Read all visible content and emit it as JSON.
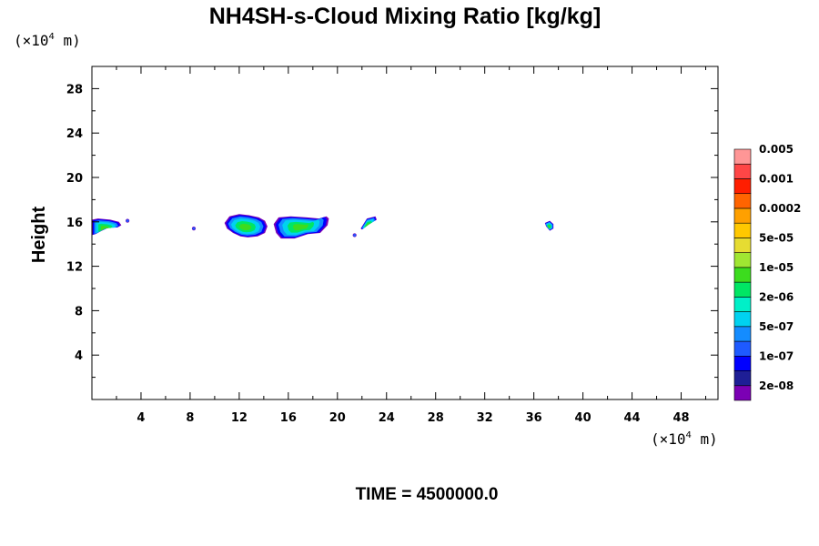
{
  "chart_data": {
    "type": "heatmap",
    "title": "NH4SH-s-Cloud Mixing Ratio [kg/kg]",
    "ylabel": "Height",
    "xlabel": "",
    "x_unit": {
      "prefix": "(×10",
      "exp": "4",
      "suffix": " m)"
    },
    "y_unit": {
      "prefix": "(×10",
      "exp": "4",
      "suffix": " m)"
    },
    "xlim": [
      0,
      51
    ],
    "ylim": [
      0,
      30
    ],
    "x_ticks": [
      4,
      8,
      12,
      16,
      20,
      24,
      28,
      32,
      36,
      40,
      44,
      48
    ],
    "y_ticks": [
      4,
      8,
      12,
      16,
      20,
      24,
      28
    ],
    "grid": false,
    "colorbar": {
      "colors": [
        "#7B00B4",
        "#1E1E96",
        "#0000FF",
        "#1E5AFF",
        "#148CFF",
        "#00D2F0",
        "#00F0C8",
        "#00E664",
        "#3CDC1E",
        "#A0E632",
        "#E6DC32",
        "#FFC800",
        "#FFA000",
        "#FF6400",
        "#FF1E00",
        "#FF4646",
        "#FF9696"
      ],
      "labels": [
        "2e-08",
        "1e-07",
        "5e-07",
        "2e-06",
        "1e-05",
        "5e-05",
        "0.0002",
        "0.001",
        "0.005"
      ]
    },
    "features": [
      {
        "x": [
          0.0,
          0.0,
          0.5,
          1.5,
          2.2,
          2.4,
          2.1,
          1.4,
          0.8,
          0.3,
          0.0
        ],
        "y": [
          14.8,
          16.2,
          16.3,
          16.2,
          16.0,
          15.7,
          15.5,
          15.5,
          15.2,
          14.9,
          14.8
        ]
      },
      {
        "x": [
          10.8,
          11.2,
          12.0,
          12.8,
          13.6,
          14.1,
          14.3,
          14.1,
          13.5,
          12.7,
          12.1,
          11.5,
          11.0,
          10.8
        ],
        "y": [
          15.9,
          16.5,
          16.7,
          16.6,
          16.4,
          16.1,
          15.6,
          15.0,
          14.7,
          14.6,
          14.7,
          15.0,
          15.4,
          15.9
        ]
      },
      {
        "x": [
          14.8,
          15.2,
          16.2,
          17.5,
          18.5,
          19.1,
          19.3,
          19.2,
          18.6,
          17.6,
          16.5,
          15.4,
          15.0,
          14.8
        ],
        "y": [
          15.8,
          16.4,
          16.5,
          16.4,
          16.3,
          16.5,
          16.3,
          15.7,
          15.0,
          14.9,
          14.5,
          14.5,
          15.0,
          15.8
        ]
      },
      {
        "x": [
          21.9,
          22.4,
          23.1,
          23.2,
          22.6,
          22.0,
          21.9
        ],
        "y": [
          15.4,
          16.3,
          16.5,
          16.2,
          15.8,
          15.3,
          15.4
        ]
      },
      {
        "x": [
          36.9,
          37.3,
          37.6,
          37.6,
          37.3,
          37.0,
          36.9
        ],
        "y": [
          15.9,
          16.1,
          15.8,
          15.4,
          15.2,
          15.6,
          15.9
        ]
      }
    ],
    "specks": [
      {
        "x": 2.9,
        "y": 16.1
      },
      {
        "x": 8.3,
        "y": 15.4
      },
      {
        "x": 21.4,
        "y": 14.8
      }
    ]
  },
  "footer": {
    "time_label": "TIME = 4500000.0"
  }
}
